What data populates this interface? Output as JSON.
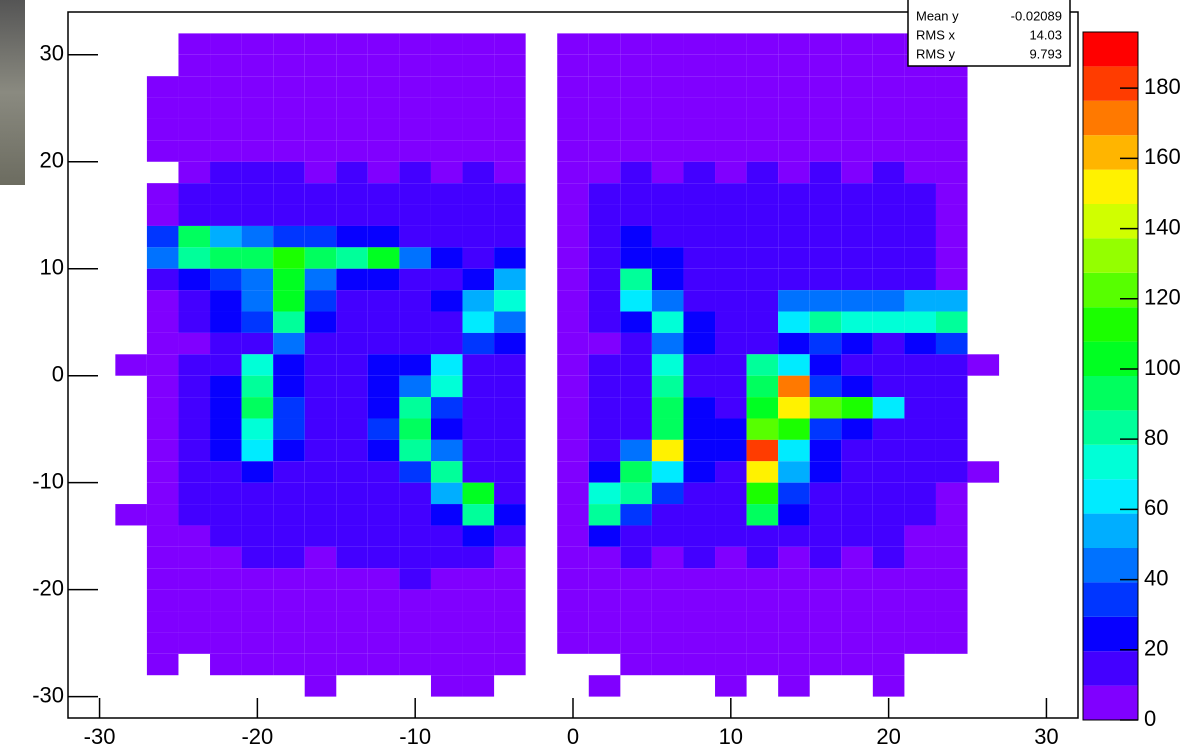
{
  "chart_data": {
    "type": "heatmap",
    "x_bins": [
      -29,
      -27,
      -25,
      -23,
      -21,
      -19,
      -17,
      -15,
      -13,
      -11,
      -9,
      -7,
      -5,
      -3,
      -1,
      1,
      3,
      5,
      7,
      9,
      11,
      13,
      15,
      17,
      19,
      21,
      23,
      25,
      27
    ],
    "y_bins": [
      32,
      30,
      28,
      26,
      24,
      22,
      20,
      18,
      16,
      14,
      12,
      10,
      8,
      6,
      4,
      2,
      0,
      -2,
      -4,
      -6,
      -8,
      -10,
      -12,
      -14,
      -16,
      -18,
      -20,
      -22,
      -24,
      -26,
      -28,
      -30
    ],
    "z": [
      [
        null,
        null,
        3,
        3,
        2,
        3,
        2,
        3,
        2,
        3,
        2,
        3,
        2,
        null,
        2,
        3,
        2,
        3,
        2,
        3,
        2,
        3,
        2,
        3,
        2,
        3,
        null,
        null
      ],
      [
        null,
        null,
        4,
        5,
        4,
        5,
        4,
        5,
        4,
        5,
        4,
        5,
        4,
        null,
        3,
        5,
        4,
        5,
        4,
        5,
        4,
        5,
        4,
        5,
        4,
        5,
        3,
        null
      ],
      [
        null,
        3,
        5,
        6,
        5,
        6,
        5,
        6,
        5,
        6,
        5,
        6,
        5,
        null,
        3,
        5,
        6,
        5,
        6,
        5,
        6,
        5,
        6,
        5,
        6,
        5,
        4,
        null
      ],
      [
        null,
        3,
        6,
        7,
        6,
        7,
        6,
        7,
        6,
        7,
        6,
        7,
        6,
        null,
        4,
        6,
        7,
        6,
        7,
        6,
        7,
        6,
        7,
        6,
        7,
        6,
        5,
        null
      ],
      [
        null,
        3,
        7,
        8,
        7,
        8,
        7,
        8,
        7,
        8,
        7,
        8,
        7,
        null,
        4,
        7,
        8,
        7,
        8,
        7,
        8,
        7,
        8,
        7,
        8,
        7,
        6,
        null
      ],
      [
        null,
        3,
        8,
        9,
        8,
        9,
        8,
        9,
        8,
        9,
        8,
        9,
        8,
        null,
        4,
        8,
        9,
        8,
        9,
        8,
        9,
        8,
        9,
        8,
        9,
        8,
        6,
        null
      ],
      [
        null,
        null,
        9,
        10,
        10,
        10,
        9,
        10,
        9,
        10,
        9,
        10,
        9,
        null,
        4,
        9,
        10,
        9,
        10,
        9,
        10,
        9,
        10,
        9,
        10,
        9,
        7,
        null
      ],
      [
        null,
        3,
        10,
        11,
        12,
        12,
        11,
        12,
        10,
        11,
        10,
        11,
        10,
        null,
        4,
        10,
        11,
        10,
        11,
        10,
        11,
        10,
        11,
        10,
        11,
        10,
        8,
        null
      ],
      [
        null,
        4,
        12,
        14,
        15,
        18,
        16,
        18,
        15,
        13,
        12,
        11,
        10,
        null,
        5,
        10,
        12,
        11,
        12,
        11,
        12,
        11,
        12,
        10,
        11,
        10,
        8,
        null
      ],
      [
        null,
        35,
        90,
        55,
        40,
        35,
        30,
        28,
        22,
        18,
        15,
        14,
        12,
        null,
        5,
        12,
        20,
        14,
        13,
        12,
        12,
        11,
        12,
        11,
        12,
        11,
        9,
        null
      ],
      [
        null,
        40,
        80,
        90,
        95,
        110,
        90,
        85,
        100,
        40,
        20,
        15,
        20,
        null,
        5,
        12,
        25,
        20,
        15,
        14,
        14,
        13,
        13,
        12,
        12,
        13,
        9,
        null
      ],
      [
        null,
        10,
        20,
        35,
        45,
        105,
        40,
        25,
        25,
        18,
        18,
        25,
        55,
        null,
        6,
        12,
        80,
        25,
        15,
        14,
        14,
        13,
        13,
        13,
        14,
        13,
        8,
        null
      ],
      [
        null,
        8,
        15,
        25,
        40,
        100,
        30,
        18,
        15,
        15,
        20,
        55,
        75,
        null,
        6,
        12,
        60,
        45,
        14,
        13,
        14,
        40,
        45,
        40,
        45,
        50,
        55,
        null
      ],
      [
        null,
        8,
        12,
        20,
        30,
        80,
        20,
        15,
        14,
        14,
        18,
        60,
        40,
        null,
        6,
        12,
        20,
        70,
        20,
        14,
        15,
        60,
        85,
        75,
        70,
        75,
        80,
        null
      ],
      [
        null,
        5,
        8,
        12,
        15,
        40,
        12,
        10,
        10,
        10,
        12,
        30,
        20,
        null,
        4,
        8,
        10,
        40,
        25,
        10,
        10,
        20,
        30,
        20,
        18,
        20,
        30,
        null
      ],
      [
        4,
        6,
        12,
        18,
        70,
        25,
        14,
        14,
        20,
        25,
        60,
        15,
        12,
        null,
        5,
        10,
        12,
        70,
        18,
        15,
        80,
        60,
        20,
        15,
        14,
        12,
        10,
        3
      ],
      [
        null,
        6,
        14,
        22,
        80,
        25,
        16,
        15,
        20,
        40,
        70,
        15,
        12,
        null,
        5,
        12,
        16,
        85,
        18,
        16,
        90,
        175,
        30,
        20,
        14,
        12,
        10,
        null
      ],
      [
        null,
        7,
        15,
        25,
        90,
        30,
        16,
        18,
        25,
        85,
        30,
        15,
        12,
        null,
        5,
        12,
        16,
        90,
        20,
        18,
        100,
        150,
        125,
        110,
        60,
        14,
        12,
        null
      ],
      [
        null,
        6,
        14,
        25,
        75,
        30,
        16,
        16,
        30,
        90,
        25,
        15,
        12,
        null,
        5,
        12,
        18,
        95,
        20,
        25,
        120,
        110,
        30,
        20,
        15,
        13,
        10,
        null
      ],
      [
        null,
        6,
        14,
        22,
        65,
        25,
        16,
        15,
        25,
        80,
        40,
        14,
        12,
        null,
        5,
        14,
        40,
        150,
        25,
        20,
        180,
        60,
        25,
        18,
        15,
        14,
        10,
        null
      ],
      [
        null,
        6,
        12,
        16,
        20,
        18,
        15,
        14,
        18,
        30,
        80,
        18,
        12,
        null,
        4,
        25,
        95,
        60,
        20,
        18,
        150,
        50,
        20,
        16,
        14,
        13,
        10,
        4
      ],
      [
        null,
        5,
        12,
        14,
        16,
        16,
        14,
        14,
        16,
        18,
        50,
        100,
        14,
        null,
        4,
        70,
        80,
        30,
        18,
        16,
        110,
        30,
        18,
        15,
        13,
        12,
        9,
        null
      ],
      [
        3,
        5,
        10,
        12,
        14,
        14,
        13,
        14,
        15,
        16,
        20,
        85,
        20,
        null,
        4,
        85,
        30,
        18,
        16,
        15,
        90,
        25,
        16,
        14,
        12,
        12,
        8,
        null
      ],
      [
        null,
        4,
        8,
        10,
        12,
        12,
        11,
        12,
        12,
        13,
        14,
        20,
        12,
        null,
        4,
        20,
        14,
        12,
        12,
        11,
        15,
        12,
        12,
        11,
        10,
        9,
        7,
        null
      ],
      [
        null,
        4,
        7,
        9,
        10,
        10,
        9,
        10,
        10,
        11,
        10,
        11,
        9,
        null,
        3,
        9,
        10,
        9,
        10,
        9,
        10,
        9,
        10,
        9,
        10,
        8,
        6,
        null
      ],
      [
        null,
        3,
        6,
        8,
        9,
        9,
        8,
        9,
        9,
        10,
        9,
        9,
        8,
        null,
        3,
        8,
        9,
        8,
        9,
        8,
        9,
        8,
        9,
        8,
        9,
        7,
        5,
        null
      ],
      [
        null,
        3,
        5,
        6,
        7,
        7,
        6,
        7,
        7,
        8,
        7,
        7,
        6,
        null,
        3,
        6,
        7,
        6,
        7,
        6,
        7,
        6,
        7,
        6,
        7,
        5,
        4,
        null
      ],
      [
        null,
        3,
        4,
        5,
        5,
        5,
        4,
        5,
        6,
        5,
        5,
        5,
        4,
        null,
        3,
        5,
        5,
        4,
        5,
        5,
        5,
        4,
        5,
        4,
        5,
        4,
        3,
        null
      ],
      [
        null,
        3,
        4,
        5,
        5,
        4,
        4,
        5,
        5,
        5,
        4,
        5,
        4,
        null,
        3,
        4,
        5,
        4,
        5,
        4,
        5,
        4,
        5,
        4,
        4,
        3,
        2,
        null
      ],
      [
        null,
        2,
        null,
        2,
        2,
        2,
        2,
        2,
        2,
        2,
        2,
        2,
        2,
        null,
        null,
        null,
        2,
        2,
        2,
        2,
        2,
        2,
        2,
        2,
        2,
        null,
        null,
        null
      ],
      [
        null,
        null,
        null,
        null,
        null,
        null,
        1,
        null,
        null,
        null,
        1,
        1,
        null,
        null,
        null,
        1,
        null,
        null,
        null,
        1,
        null,
        1,
        null,
        null,
        1,
        null,
        null,
        null
      ]
    ],
    "xlim": [
      -32,
      32
    ],
    "xticks": [
      -30,
      -20,
      -10,
      0,
      10,
      20,
      30
    ],
    "ylim": [
      -32,
      34
    ],
    "yticks": [
      -30,
      -20,
      -10,
      0,
      10,
      20,
      30
    ],
    "zlim": [
      0,
      196
    ],
    "zticks": [
      0,
      20,
      40,
      60,
      80,
      100,
      120,
      140,
      160,
      180
    ],
    "z_levels": 20,
    "stats": [
      {
        "label": "Mean y",
        "value": -0.02089
      },
      {
        "label": "RMS x",
        "value": 14.03
      },
      {
        "label": "RMS y",
        "value": 9.793
      }
    ]
  }
}
